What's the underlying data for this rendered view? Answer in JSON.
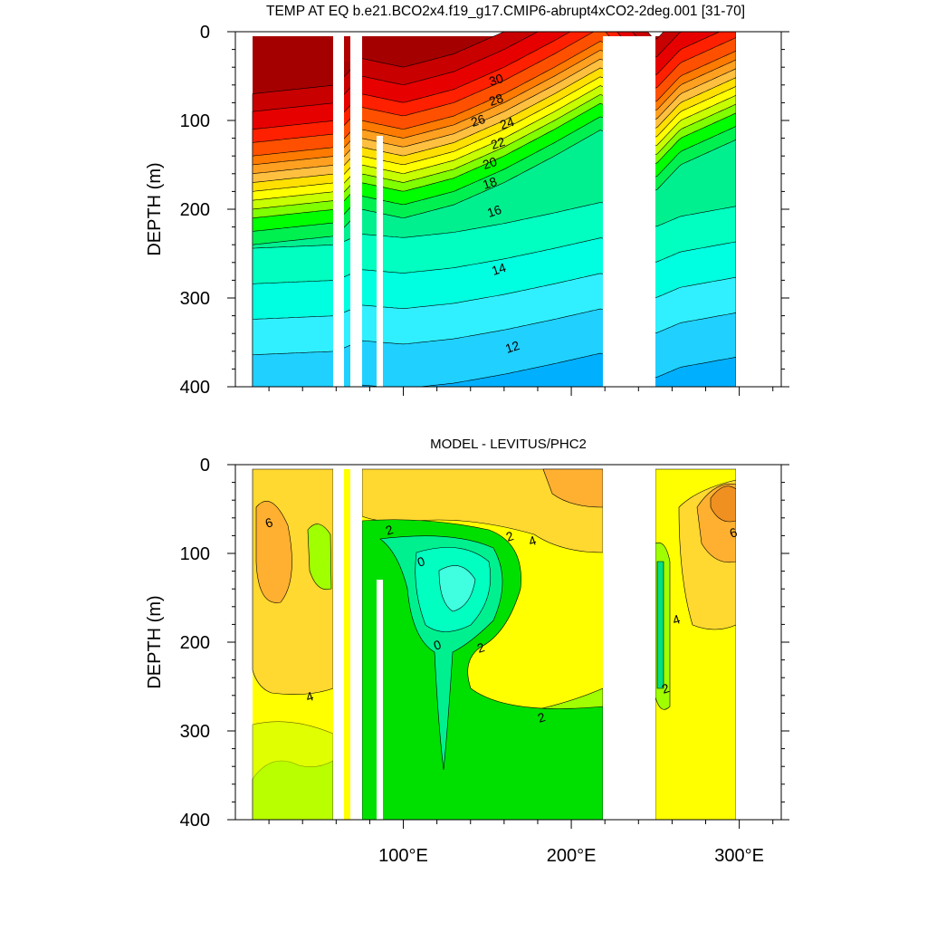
{
  "chart_data": [
    {
      "type": "contour",
      "title": "TEMP AT EQ b.e21.BCO2x4.f19_g17.CMIP6-abrupt4xCO2-2deg.001 [31-70]",
      "y_label": "DEPTH (m)",
      "ylim": [
        0,
        400
      ],
      "yticks": [
        0,
        100,
        200,
        300,
        400
      ],
      "y_inverted": true,
      "xlim": [
        0,
        325
      ],
      "contour_labels": [
        30,
        28,
        26,
        24,
        22,
        20,
        18,
        16,
        14,
        12
      ]
    },
    {
      "type": "contour",
      "title": "MODEL - LEVITUS/PHC2",
      "y_label": "DEPTH (m)",
      "ylim": [
        0,
        400
      ],
      "yticks": [
        0,
        100,
        200,
        300,
        400
      ],
      "y_inverted": true,
      "xlim": [
        0,
        325
      ],
      "xticks": [
        {
          "value": 100,
          "label": "100°E"
        },
        {
          "value": 200,
          "label": "200°E"
        },
        {
          "value": 300,
          "label": "300°E"
        }
      ],
      "contour_labels": [
        6,
        2,
        0,
        2,
        4,
        0,
        2,
        2,
        4,
        4,
        2,
        6
      ]
    }
  ]
}
